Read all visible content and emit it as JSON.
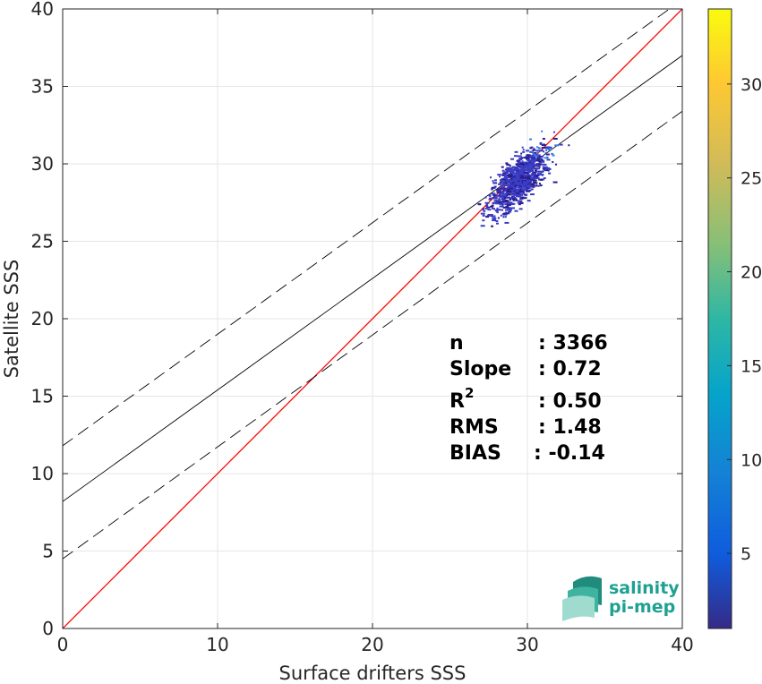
{
  "chart_data": {
    "type": "scatter",
    "title": "",
    "xlabel": "Surface drifters SSS",
    "ylabel": "Satellite SSS",
    "xlim": [
      0,
      40
    ],
    "ylim": [
      0,
      40
    ],
    "xticks": [
      0,
      10,
      20,
      30,
      40
    ],
    "yticks": [
      0,
      5,
      10,
      15,
      20,
      25,
      30,
      35,
      40
    ],
    "grid": true,
    "lines": [
      {
        "label": "1:1",
        "color": "#ff0000",
        "style": "solid",
        "points": [
          [
            0,
            0
          ],
          [
            40,
            40
          ]
        ]
      },
      {
        "label": "fit",
        "color": "#000000",
        "style": "solid",
        "points": [
          [
            0,
            8.2
          ],
          [
            40,
            37.0
          ]
        ]
      },
      {
        "label": "fit+rms",
        "color": "#000000",
        "style": "dashed",
        "points": [
          [
            0,
            11.8
          ],
          [
            40,
            40.6
          ]
        ]
      },
      {
        "label": "fit-rms",
        "color": "#000000",
        "style": "dashed",
        "points": [
          [
            0,
            4.5
          ],
          [
            40,
            33.4
          ]
        ]
      }
    ],
    "density": {
      "x_range": [
        23,
        33
      ],
      "y_range": [
        22.5,
        33
      ],
      "center": [
        29.4,
        29.0
      ],
      "color_main": "#3b3ec6",
      "color_dark": "#2b1d8c",
      "color_hot": "#3a7ae8"
    },
    "colorbar": {
      "range": [
        1,
        34
      ],
      "ticks": [
        5,
        10,
        15,
        20,
        25,
        30
      ],
      "colormap": "parula"
    },
    "stats": [
      {
        "name": "n",
        "value": ": 3366"
      },
      {
        "name": "Slope",
        "value": ": 0.72"
      },
      {
        "name": "R",
        "sup": "2",
        "value": ": 0.50"
      },
      {
        "name": "RMS",
        "value": ": 1.48"
      },
      {
        "name": "BIAS",
        "value": ": -0.14"
      }
    ]
  },
  "logo": {
    "line1": "salinity",
    "line2": "pi-mep"
  }
}
